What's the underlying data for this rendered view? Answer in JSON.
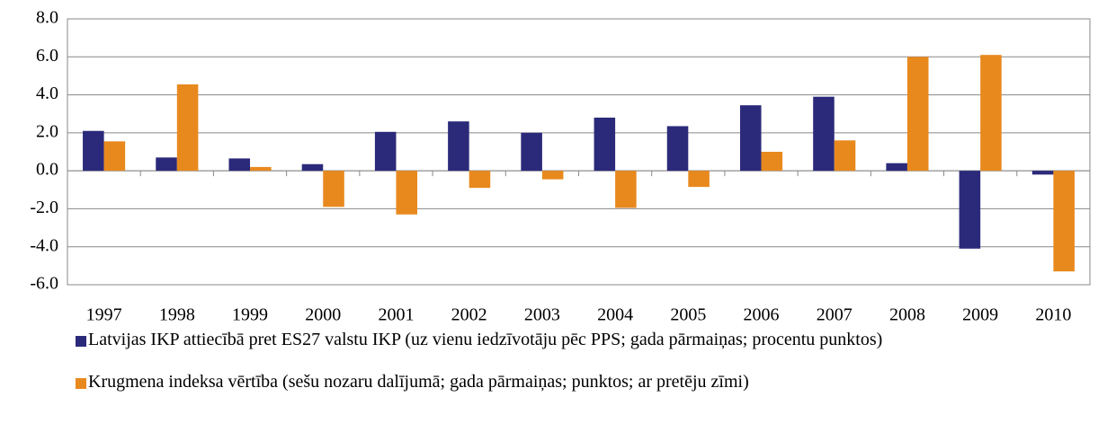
{
  "chart_data": {
    "type": "bar",
    "categories": [
      "1997",
      "1998",
      "1999",
      "2000",
      "2001",
      "2002",
      "2003",
      "2004",
      "2005",
      "2006",
      "2007",
      "2008",
      "2009",
      "2010"
    ],
    "series": [
      {
        "name": "Latvijas IKP attiecībā pret ES27 valstu IKP (uz vienu iedzīvotāju pēc PPS; gada pārmaiņas; procentu punktos)",
        "color": "#2b2a7a",
        "values": [
          2.1,
          0.7,
          0.65,
          0.35,
          2.05,
          2.6,
          2.0,
          2.8,
          2.35,
          3.45,
          3.9,
          0.4,
          -4.1,
          -0.2
        ]
      },
      {
        "name": "Krugmena indeksa vērtība (sešu nozaru dalījumā; gada pārmaiņas; punktos; ar pretēju zīmi)",
        "color": "#e8891e",
        "values": [
          1.55,
          4.55,
          0.2,
          -1.9,
          -2.3,
          -0.9,
          -0.45,
          -1.95,
          -0.85,
          1.0,
          1.6,
          6.0,
          6.1,
          -5.3
        ]
      }
    ],
    "ylim": [
      -6,
      8
    ],
    "yticks": [
      {
        "value": -6,
        "label": "-6.0"
      },
      {
        "value": -4,
        "label": "-4.0"
      },
      {
        "value": -2,
        "label": "-2.0"
      },
      {
        "value": 0,
        "label": "0.0"
      },
      {
        "value": 2,
        "label": "2.0"
      },
      {
        "value": 4,
        "label": "4.0"
      },
      {
        "value": 6,
        "label": "6.0"
      },
      {
        "value": 8,
        "label": "8.0"
      }
    ],
    "grid": true
  }
}
